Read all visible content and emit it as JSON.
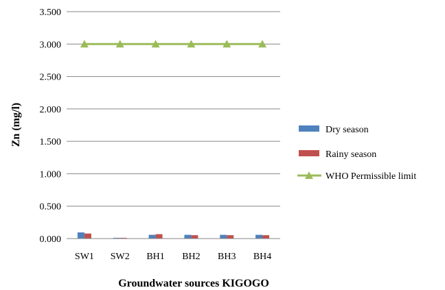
{
  "chart_data": {
    "type": "bar",
    "categories": [
      "SW1",
      "SW2",
      "BH1",
      "BH2",
      "BH3",
      "BH4"
    ],
    "series": [
      {
        "name": "Dry season",
        "kind": "bar",
        "color": "#4F81BD",
        "values": [
          0.095,
          0.012,
          0.058,
          0.058,
          0.058,
          0.058
        ]
      },
      {
        "name": "Rainy season",
        "kind": "bar",
        "color": "#C0504D",
        "values": [
          0.078,
          0.012,
          0.068,
          0.052,
          0.052,
          0.052
        ]
      },
      {
        "name": "WHO Permissible limit",
        "kind": "line",
        "marker": "triangle",
        "color": "#9BBB59",
        "values": [
          3.0,
          3.0,
          3.0,
          3.0,
          3.0,
          3.0
        ]
      }
    ],
    "title": "",
    "xlabel": "Groundwater sources KIGOGO",
    "ylabel": "Zn (mg/l)",
    "ylim": [
      0,
      3.5
    ],
    "yticks": [
      "0.000",
      "0.500",
      "1.000",
      "1.500",
      "2.000",
      "2.500",
      "3.000",
      "3.500"
    ],
    "grid": "horizontal",
    "legend": "right"
  }
}
